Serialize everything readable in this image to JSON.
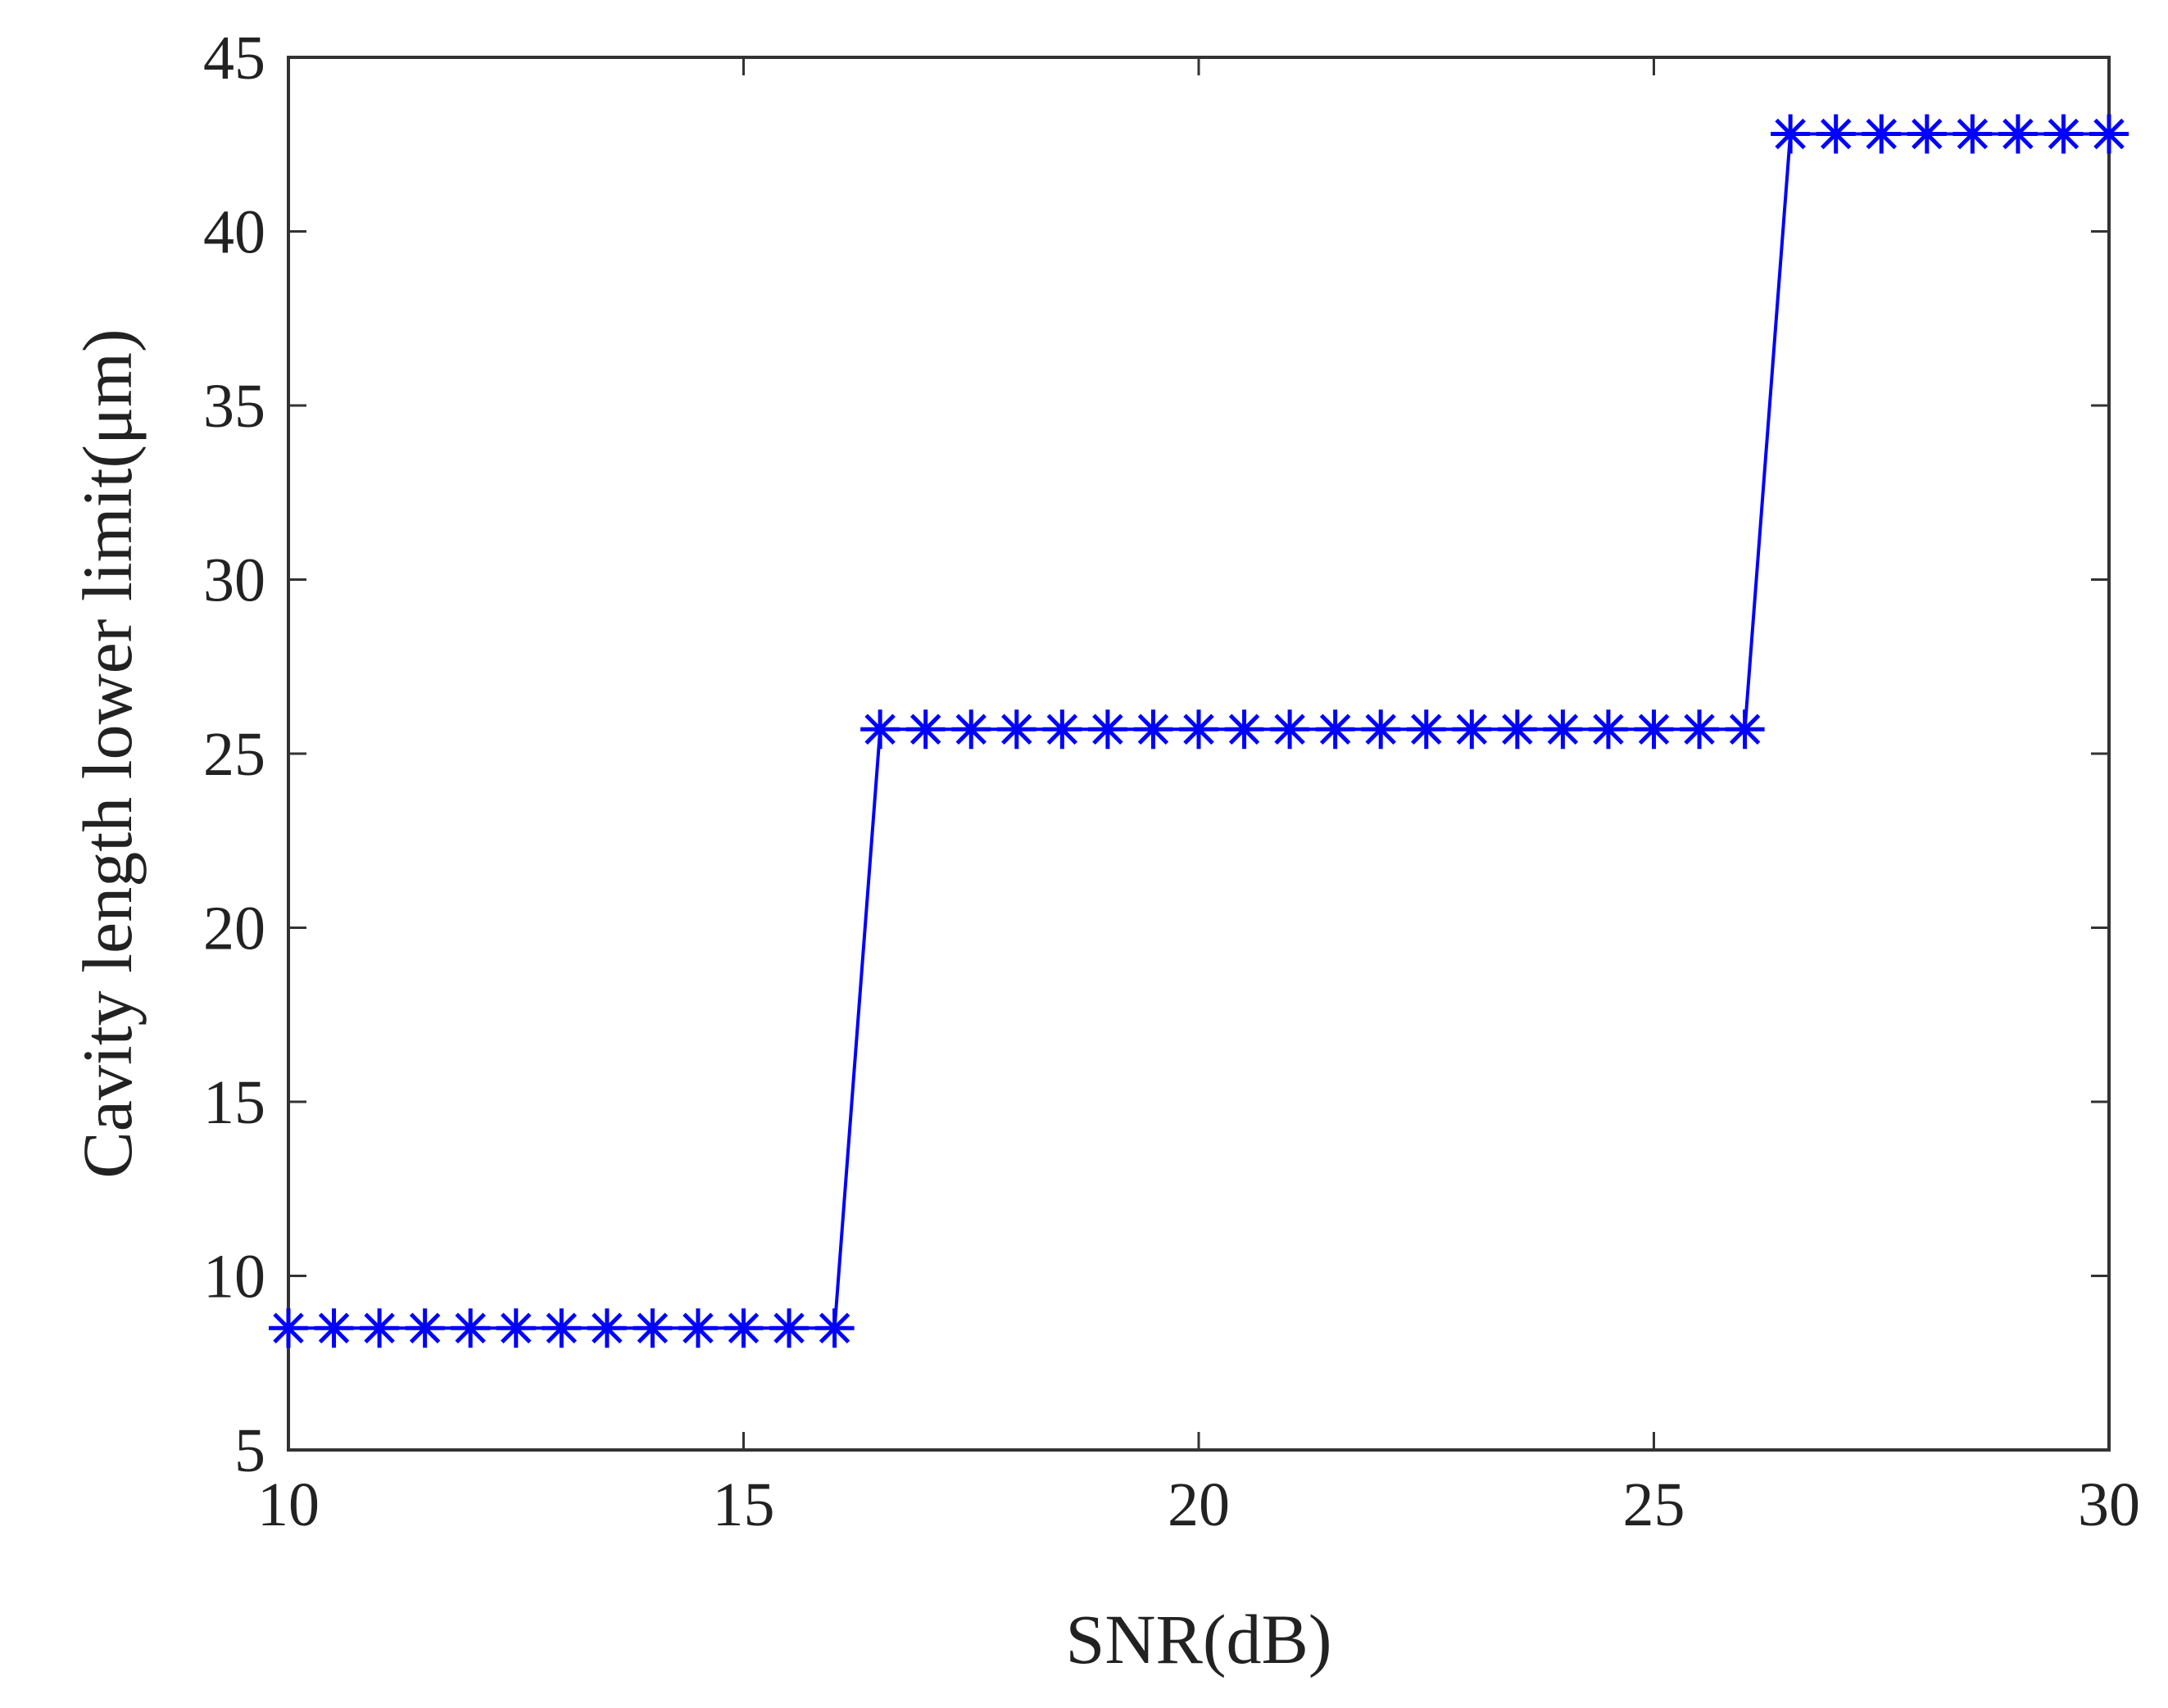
{
  "chart_data": {
    "type": "line",
    "title": "",
    "xlabel": "SNR(dB)",
    "ylabel": "Cavity length lower limit(μm)",
    "xlim": [
      10,
      30
    ],
    "ylim": [
      5,
      45
    ],
    "xticks": [
      "10",
      "15",
      "20",
      "25",
      "30"
    ],
    "yticks": [
      "5",
      "10",
      "15",
      "20",
      "25",
      "30",
      "35",
      "40",
      "45"
    ],
    "grid": false,
    "legend": "none",
    "series": [
      {
        "color": "#0000ff",
        "marker": "asterisk",
        "x": [
          10,
          10.5,
          11,
          11.5,
          12,
          12.5,
          13,
          13.5,
          14,
          14.5,
          15,
          15.5,
          16,
          16.5,
          17,
          17.5,
          18,
          18.5,
          19,
          19.5,
          20,
          20.5,
          21,
          21.5,
          22,
          22.5,
          23,
          23.5,
          24,
          24.5,
          25,
          25.5,
          26,
          26.5,
          27,
          27.5,
          28,
          28.5,
          29,
          29.5,
          30
        ],
        "y": [
          8.5,
          8.5,
          8.5,
          8.5,
          8.5,
          8.5,
          8.5,
          8.5,
          8.5,
          8.5,
          8.5,
          8.5,
          8.5,
          25.7,
          25.7,
          25.7,
          25.7,
          25.7,
          25.7,
          25.7,
          25.7,
          25.7,
          25.7,
          25.7,
          25.7,
          25.7,
          25.7,
          25.7,
          25.7,
          25.7,
          25.7,
          25.7,
          25.7,
          42.8,
          42.8,
          42.8,
          42.8,
          42.8,
          42.8,
          42.8,
          42.8
        ]
      }
    ]
  }
}
